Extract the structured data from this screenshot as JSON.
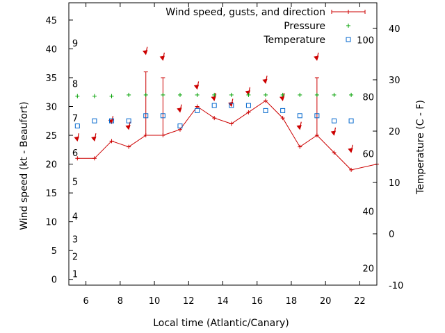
{
  "chart_data": {
    "type": "line",
    "xlabel": "Local time (Atlantic/Canary)",
    "ylabel": "Wind speed (kt - Beaufort)",
    "y2label": "Temperature (C - F)",
    "xlim": [
      5,
      23
    ],
    "ylim": [
      -1,
      48
    ],
    "y2lim": [
      -10,
      45
    ],
    "x_ticks": [
      "6",
      "8",
      "10",
      "12",
      "14",
      "16",
      "18",
      "20",
      "22"
    ],
    "y_ticks": [
      "0",
      "5",
      "10",
      "15",
      "20",
      "25",
      "30",
      "35",
      "40",
      "45"
    ],
    "y2_ticks": [
      "-10",
      "0",
      "10",
      "20",
      "30",
      "40"
    ],
    "beaufort_labels": [
      {
        "label": "1",
        "kt": 1
      },
      {
        "label": "2",
        "kt": 4
      },
      {
        "label": "3",
        "kt": 7
      },
      {
        "label": "4",
        "kt": 11
      },
      {
        "label": "5",
        "kt": 17
      },
      {
        "label": "6",
        "kt": 22
      },
      {
        "label": "7",
        "kt": 28
      },
      {
        "label": "8",
        "kt": 34
      },
      {
        "label": "9",
        "kt": 41
      }
    ],
    "fahrenheit_labels": [
      {
        "label": "20",
        "celsius": -6.7
      },
      {
        "label": "40",
        "celsius": 4.4
      },
      {
        "label": "60",
        "celsius": 15.6
      },
      {
        "label": "80",
        "celsius": 26.7
      },
      {
        "label": "100",
        "celsius": 37.8
      }
    ],
    "legend_position": "top-right",
    "series": [
      {
        "name": "Wind speed, gusts, and direction",
        "color": "#cc0000",
        "x": [
          5.5,
          6.5,
          7.5,
          8.5,
          9.5,
          10.5,
          11.5,
          12.5,
          13.5,
          14.5,
          15.5,
          16.5,
          17.5,
          18.5,
          19.5,
          20.5,
          21.5,
          23
        ],
        "y": [
          21,
          21,
          24,
          23,
          25,
          25,
          26,
          30,
          28,
          27,
          29,
          31,
          28,
          23,
          25,
          22,
          19,
          20
        ],
        "gusts": [
          null,
          null,
          null,
          null,
          36,
          35,
          null,
          null,
          null,
          null,
          null,
          null,
          null,
          null,
          35,
          null,
          null,
          null
        ],
        "arrows": [
          {
            "x": 5.5,
            "kt": 24.5
          },
          {
            "x": 6.5,
            "kt": 24.5
          },
          {
            "x": 7.5,
            "kt": 27.5
          },
          {
            "x": 8.5,
            "kt": 26.5
          },
          {
            "x": 9.5,
            "kt": 39.5
          },
          {
            "x": 10.5,
            "kt": 38.5
          },
          {
            "x": 11.5,
            "kt": 29.5
          },
          {
            "x": 12.5,
            "kt": 33.5
          },
          {
            "x": 13.5,
            "kt": 31.5
          },
          {
            "x": 14.5,
            "kt": 30.5
          },
          {
            "x": 15.5,
            "kt": 32.5
          },
          {
            "x": 16.5,
            "kt": 34.5
          },
          {
            "x": 17.5,
            "kt": 31.5
          },
          {
            "x": 18.5,
            "kt": 26.5
          },
          {
            "x": 19.5,
            "kt": 38.5
          },
          {
            "x": 20.5,
            "kt": 25.5
          },
          {
            "x": 21.5,
            "kt": 22.5
          }
        ]
      },
      {
        "name": "Pressure",
        "color": "#00a000",
        "x": [
          5.5,
          6.5,
          7.5,
          8.5,
          9.5,
          10.5,
          11.5,
          12.5,
          13.5,
          14.5,
          15.5,
          16.5,
          17.5,
          18.5,
          19.5,
          20.5,
          21.5
        ],
        "y": [
          31.8,
          31.8,
          31.8,
          32,
          32,
          32,
          32,
          32,
          32,
          32,
          32,
          32,
          32,
          32,
          32,
          32,
          32
        ]
      },
      {
        "name": "Temperature",
        "color": "#0066cc",
        "x": [
          5.5,
          6.5,
          7.5,
          8.5,
          9.5,
          10.5,
          11.5,
          12.5,
          13.5,
          14.5,
          15.5,
          16.5,
          17.5,
          18.5,
          19.5,
          20.5,
          21.5
        ],
        "y": [
          21,
          22,
          22,
          22,
          23,
          23,
          21,
          24,
          25,
          25,
          25,
          24,
          24,
          23,
          23,
          22,
          22
        ]
      }
    ]
  }
}
